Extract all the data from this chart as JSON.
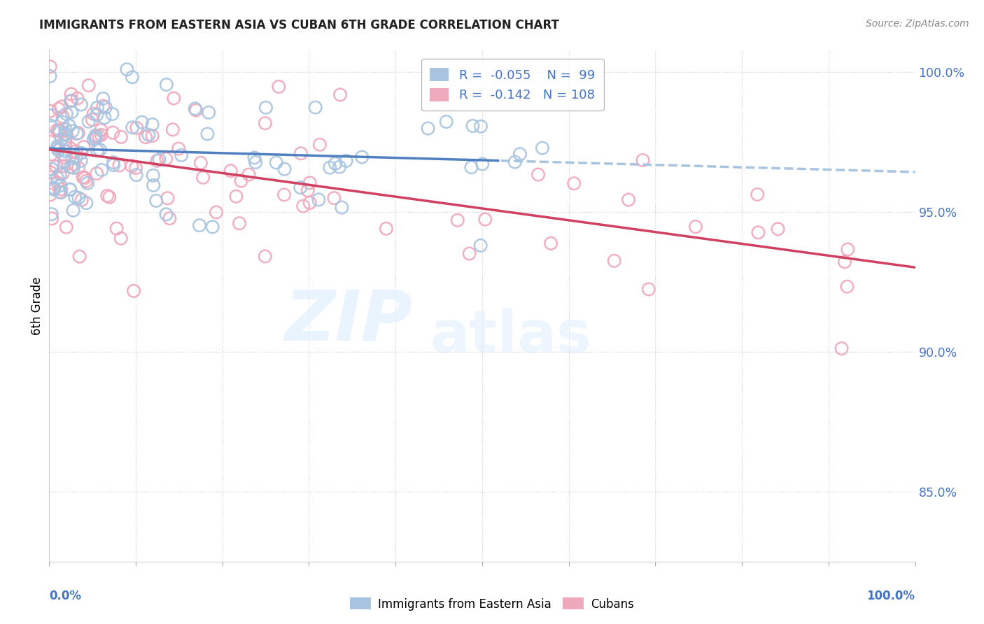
{
  "title": "IMMIGRANTS FROM EASTERN ASIA VS CUBAN 6TH GRADE CORRELATION CHART",
  "source": "Source: ZipAtlas.com",
  "ylabel": "6th Grade",
  "y_ticks": [
    0.85,
    0.9,
    0.95,
    1.0
  ],
  "y_tick_labels": [
    "85.0%",
    "90.0%",
    "95.0%",
    "100.0%"
  ],
  "x_range": [
    0.0,
    1.0
  ],
  "y_range": [
    0.825,
    1.008
  ],
  "r_blue": -0.055,
  "n_blue": 99,
  "r_pink": -0.142,
  "n_pink": 108,
  "legend_label_blue": "Immigrants from Eastern Asia",
  "legend_label_pink": "Cubans",
  "watermark_zip": "ZIP",
  "watermark_atlas": "atlas",
  "blue_marker_color": "#a8c4e0",
  "pink_marker_color": "#f0a8bc",
  "blue_line_color": "#5080c0",
  "pink_line_color": "#d04060",
  "blue_line_dashed_color": "#a8c4e0",
  "grid_color": "#cccccc",
  "title_color": "#222222",
  "tick_color": "#4472c4",
  "source_color": "#888888"
}
